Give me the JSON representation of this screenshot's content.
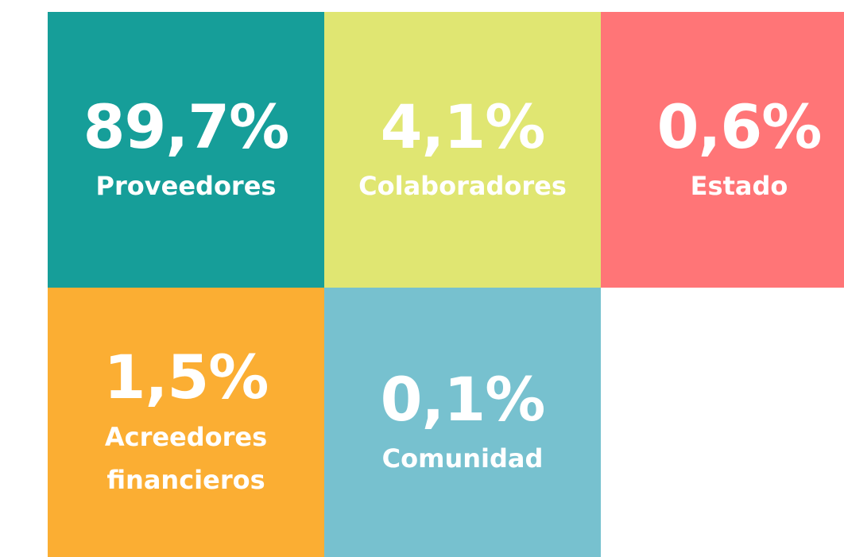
{
  "tiles": [
    {
      "value": "89,7%",
      "label": "Proveedores",
      "color": "#169e99"
    },
    {
      "value": "4,1%",
      "label": "Colaboradores",
      "color": "#e0e672"
    },
    {
      "value": "0,6%",
      "label": "Estado",
      "color": "#ff7577"
    },
    {
      "value": "1,5%",
      "label": "Acreedores\nfinancieros",
      "color": "#fbae33"
    },
    {
      "value": "0,1%",
      "label": "Comunidad",
      "color": "#77c1cf"
    }
  ]
}
